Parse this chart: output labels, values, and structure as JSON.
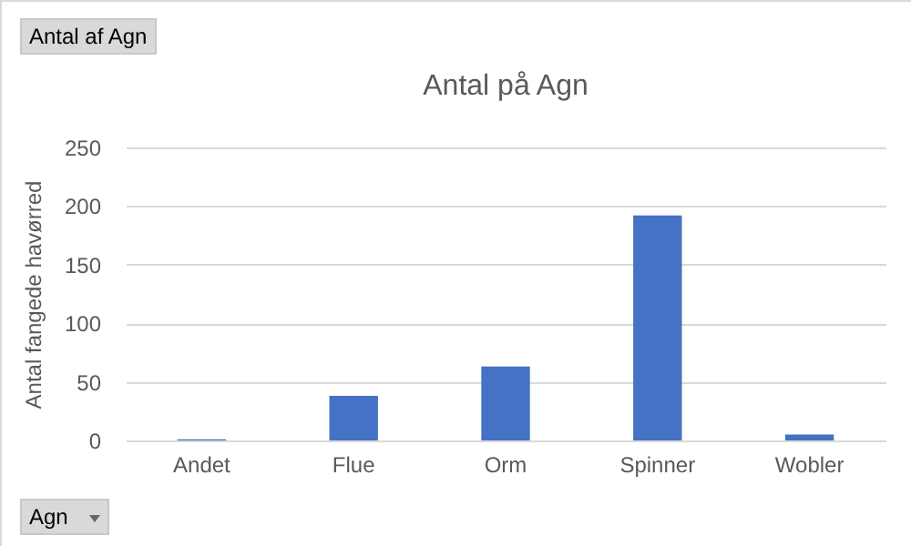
{
  "chart_data": {
    "type": "bar",
    "title": "Antal på Agn",
    "ylabel": "Antal fangede havørred",
    "categories": [
      "Andet",
      "Flue",
      "Orm",
      "Spinner",
      "Wobler"
    ],
    "values": [
      1,
      38,
      63,
      192,
      5
    ],
    "color": "#4472c4",
    "ylim": [
      0,
      250
    ],
    "yticks": [
      0,
      50,
      100,
      150,
      200,
      250
    ],
    "grid": "y",
    "annotations": [
      "Antal af Agn",
      "Agn"
    ]
  }
}
